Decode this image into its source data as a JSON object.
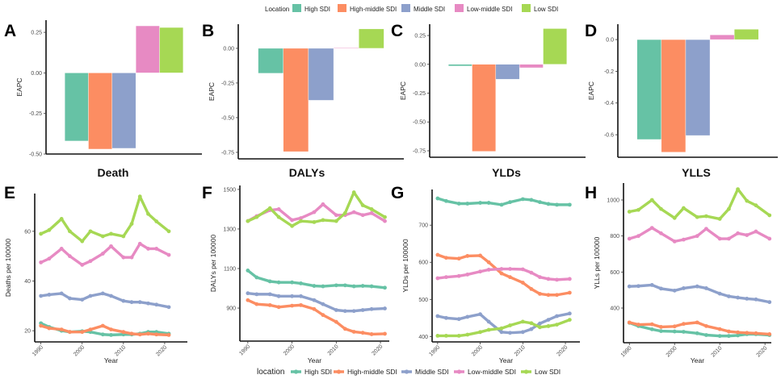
{
  "legend_top": {
    "title": "Location",
    "items": [
      "High SDI",
      "High-middle SDI",
      "Middle SDI",
      "Low-middle SDI",
      "Low SDI"
    ]
  },
  "legend_bottom": {
    "title": "location",
    "items": [
      "High SDI",
      "High-middle SDI",
      "Middle SDI",
      "Low-middle SDI",
      "Low SDI"
    ]
  },
  "colors": {
    "High SDI": "#66c2a5",
    "High-middle SDI": "#fc8d62",
    "Middle SDI": "#8da0cb",
    "Low-middle SDI": "#e78ac3",
    "Low SDI": "#a6d854"
  },
  "chart_data": [
    {
      "panel": "A",
      "type": "bar",
      "title": "Death",
      "ylabel": "EAPC",
      "xlabel": "",
      "categories": [
        "High SDI",
        "High-middle SDI",
        "Middle SDI",
        "Low-middle SDI",
        "Low SDI"
      ],
      "values": [
        -0.42,
        -0.47,
        -0.465,
        0.29,
        0.28
      ],
      "yticks": [
        -0.5,
        -0.25,
        0,
        0.25
      ],
      "ytick_labels": [
        "-0.50",
        "-0.25",
        "0.00",
        "0.25"
      ],
      "ylim": [
        -0.5,
        0.325
      ],
      "grid": false
    },
    {
      "panel": "B",
      "type": "bar",
      "title": "DALYs",
      "ylabel": "EAPC",
      "xlabel": "",
      "categories": [
        "High SDI",
        "High-middle SDI",
        "Middle SDI",
        "Low-middle SDI",
        "Low SDI"
      ],
      "values": [
        -0.18,
        -0.745,
        -0.375,
        0.005,
        0.14
      ],
      "yticks": [
        -0.75,
        -0.5,
        -0.25,
        0
      ],
      "ytick_labels": [
        "-0.75",
        "-0.50",
        "-0.25",
        "0.00"
      ],
      "ylim": [
        -0.797,
        0.174
      ],
      "grid": false
    },
    {
      "panel": "C",
      "type": "bar",
      "title": "YLDs",
      "ylabel": "EAPC",
      "xlabel": "",
      "categories": [
        "High SDI",
        "High-middle SDI",
        "Middle SDI",
        "Low-middle SDI",
        "Low SDI"
      ],
      "values": [
        -0.015,
        -0.755,
        -0.13,
        -0.03,
        0.31
      ],
      "yticks": [
        -0.75,
        -0.5,
        -0.25,
        0,
        0.25
      ],
      "ytick_labels": [
        "-0.75",
        "-0.50",
        "-0.25",
        "0.00",
        "0.25"
      ],
      "ylim": [
        -0.806,
        0.348
      ],
      "grid": false
    },
    {
      "panel": "D",
      "type": "bar",
      "title": "YLLS",
      "ylabel": "EAPC",
      "xlabel": "",
      "categories": [
        "High SDI",
        "High-middle SDI",
        "Middle SDI",
        "Low-middle SDI",
        "Low SDI"
      ],
      "values": [
        -0.63,
        -0.71,
        -0.605,
        0.03,
        0.065
      ],
      "yticks": [
        -0.6,
        -0.4,
        -0.2,
        0
      ],
      "ytick_labels": [
        "-0.6",
        "-0.4",
        "-0.2",
        "0.0"
      ],
      "ylim": [
        -0.742,
        0.097
      ],
      "grid": false
    },
    {
      "panel": "E",
      "type": "line",
      "xlabel": "Year",
      "ylabel": "Deaths per 100000",
      "x": [
        1990,
        1992,
        1995,
        1997,
        2000,
        2002,
        2005,
        2007,
        2010,
        2012,
        2014,
        2016,
        2018,
        2021
      ],
      "xticks": [
        1990,
        2000,
        2010,
        2020
      ],
      "yticks": [
        20,
        40,
        60
      ],
      "xlim": [
        1988.5,
        2025.5
      ],
      "ylim": [
        15.5,
        75.2
      ],
      "grid": false,
      "series": [
        {
          "name": "High SDI",
          "values": [
            23,
            21.5,
            20,
            19.5,
            19.8,
            19.5,
            18.5,
            18.3,
            18.5,
            18.5,
            18.8,
            19.5,
            19.5,
            18.8
          ]
        },
        {
          "name": "High-middle SDI",
          "values": [
            22,
            21,
            20.5,
            19.5,
            19.5,
            20.5,
            22,
            20.5,
            19.5,
            18.8,
            18.5,
            18.8,
            18.5,
            18.3
          ]
        },
        {
          "name": "Middle SDI",
          "values": [
            34,
            34.5,
            35,
            33,
            32.5,
            34,
            35,
            34,
            32,
            31.5,
            31.5,
            31,
            30.5,
            29.5
          ]
        },
        {
          "name": "Low-middle SDI",
          "values": [
            47.5,
            49,
            53,
            50,
            46.5,
            48,
            51,
            54,
            49.5,
            49.5,
            55,
            53,
            53,
            50.5
          ]
        },
        {
          "name": "Low SDI",
          "values": [
            59,
            60.5,
            65,
            60,
            56,
            60,
            58,
            59,
            58,
            63,
            74,
            67,
            64,
            60
          ]
        }
      ]
    },
    {
      "panel": "F",
      "type": "line",
      "xlabel": "Year",
      "ylabel": "DALYs per 100000",
      "x": [
        1990,
        1992,
        1995,
        1997,
        2000,
        2002,
        2005,
        2007,
        2010,
        2012,
        2014,
        2016,
        2018,
        2021
      ],
      "xticks": [
        1990,
        2000,
        2010,
        2020
      ],
      "yticks": [
        900,
        1100,
        1300,
        1500
      ],
      "xlim": [
        1988.2,
        2022
      ],
      "ylim": [
        733,
        1520
      ],
      "grid": false,
      "series": [
        {
          "name": "High SDI",
          "values": [
            1090,
            1055,
            1035,
            1030,
            1030,
            1025,
            1012,
            1010,
            1015,
            1015,
            1010,
            1012,
            1010,
            1003
          ]
        },
        {
          "name": "High-middle SDI",
          "values": [
            940,
            920,
            915,
            905,
            912,
            915,
            895,
            865,
            830,
            795,
            780,
            775,
            768,
            770
          ]
        },
        {
          "name": "Middle SDI",
          "values": [
            975,
            970,
            970,
            960,
            960,
            960,
            940,
            920,
            890,
            885,
            885,
            890,
            895,
            898
          ]
        },
        {
          "name": "Low-middle SDI",
          "values": [
            1340,
            1365,
            1395,
            1400,
            1345,
            1355,
            1385,
            1425,
            1370,
            1370,
            1385,
            1370,
            1380,
            1340
          ]
        },
        {
          "name": "Low SDI",
          "values": [
            1340,
            1360,
            1405,
            1360,
            1315,
            1340,
            1335,
            1345,
            1340,
            1380,
            1485,
            1420,
            1400,
            1360
          ]
        }
      ]
    },
    {
      "panel": "G",
      "type": "line",
      "xlabel": "Year",
      "ylabel": "YLDs per 100000",
      "x": [
        1990,
        1992,
        1995,
        1997,
        2000,
        2002,
        2005,
        2007,
        2010,
        2012,
        2014,
        2016,
        2018,
        2021
      ],
      "xticks": [
        1990,
        2000,
        2010,
        2020
      ],
      "yticks": [
        400,
        500,
        600,
        700
      ],
      "xlim": [
        1988.7,
        2023.4
      ],
      "ylim": [
        385.5,
        796
      ],
      "grid": false,
      "series": [
        {
          "name": "High SDI",
          "values": [
            772,
            765,
            758,
            758,
            760,
            760,
            755,
            762,
            770,
            768,
            762,
            757,
            755,
            755
          ]
        },
        {
          "name": "High-middle SDI",
          "values": [
            620,
            612,
            610,
            617,
            618,
            600,
            570,
            560,
            545,
            528,
            515,
            512,
            512,
            518
          ]
        },
        {
          "name": "Middle SDI",
          "values": [
            455,
            450,
            447,
            453,
            460,
            440,
            412,
            410,
            412,
            420,
            435,
            445,
            455,
            462
          ]
        },
        {
          "name": "Low-middle SDI",
          "values": [
            557,
            560,
            563,
            567,
            575,
            580,
            582,
            582,
            581,
            572,
            560,
            555,
            553,
            555
          ]
        },
        {
          "name": "Low SDI",
          "values": [
            402,
            402,
            402,
            405,
            412,
            418,
            422,
            430,
            440,
            436,
            425,
            428,
            432,
            445
          ]
        }
      ]
    },
    {
      "panel": "H",
      "type": "line",
      "xlabel": "Year",
      "ylabel": "YLLs per 100000",
      "x": [
        1990,
        1992,
        1995,
        1997,
        2000,
        2002,
        2005,
        2007,
        2010,
        2012,
        2014,
        2016,
        2018,
        2021
      ],
      "xticks": [
        1990,
        2000,
        2010,
        2020
      ],
      "yticks": [
        400,
        600,
        800,
        1000
      ],
      "xlim": [
        1988.7,
        2021.4
      ],
      "ylim": [
        207.5,
        1094
      ],
      "grid": false,
      "series": [
        {
          "name": "High SDI",
          "values": [
            318,
            300,
            282,
            272,
            270,
            268,
            260,
            250,
            245,
            245,
            248,
            255,
            255,
            250
          ]
        },
        {
          "name": "High-middle SDI",
          "values": [
            320,
            308,
            310,
            295,
            298,
            312,
            320,
            300,
            283,
            270,
            265,
            262,
            260,
            255
          ]
        },
        {
          "name": "Middle SDI",
          "values": [
            520,
            522,
            528,
            508,
            497,
            510,
            520,
            510,
            480,
            465,
            458,
            452,
            448,
            433
          ]
        },
        {
          "name": "Low-middle SDI",
          "values": [
            785,
            800,
            845,
            815,
            770,
            780,
            800,
            840,
            785,
            785,
            815,
            805,
            825,
            785
          ]
        },
        {
          "name": "Low SDI",
          "values": [
            935,
            945,
            1000,
            950,
            900,
            955,
            905,
            910,
            895,
            950,
            1060,
            995,
            970,
            915
          ]
        }
      ]
    }
  ]
}
